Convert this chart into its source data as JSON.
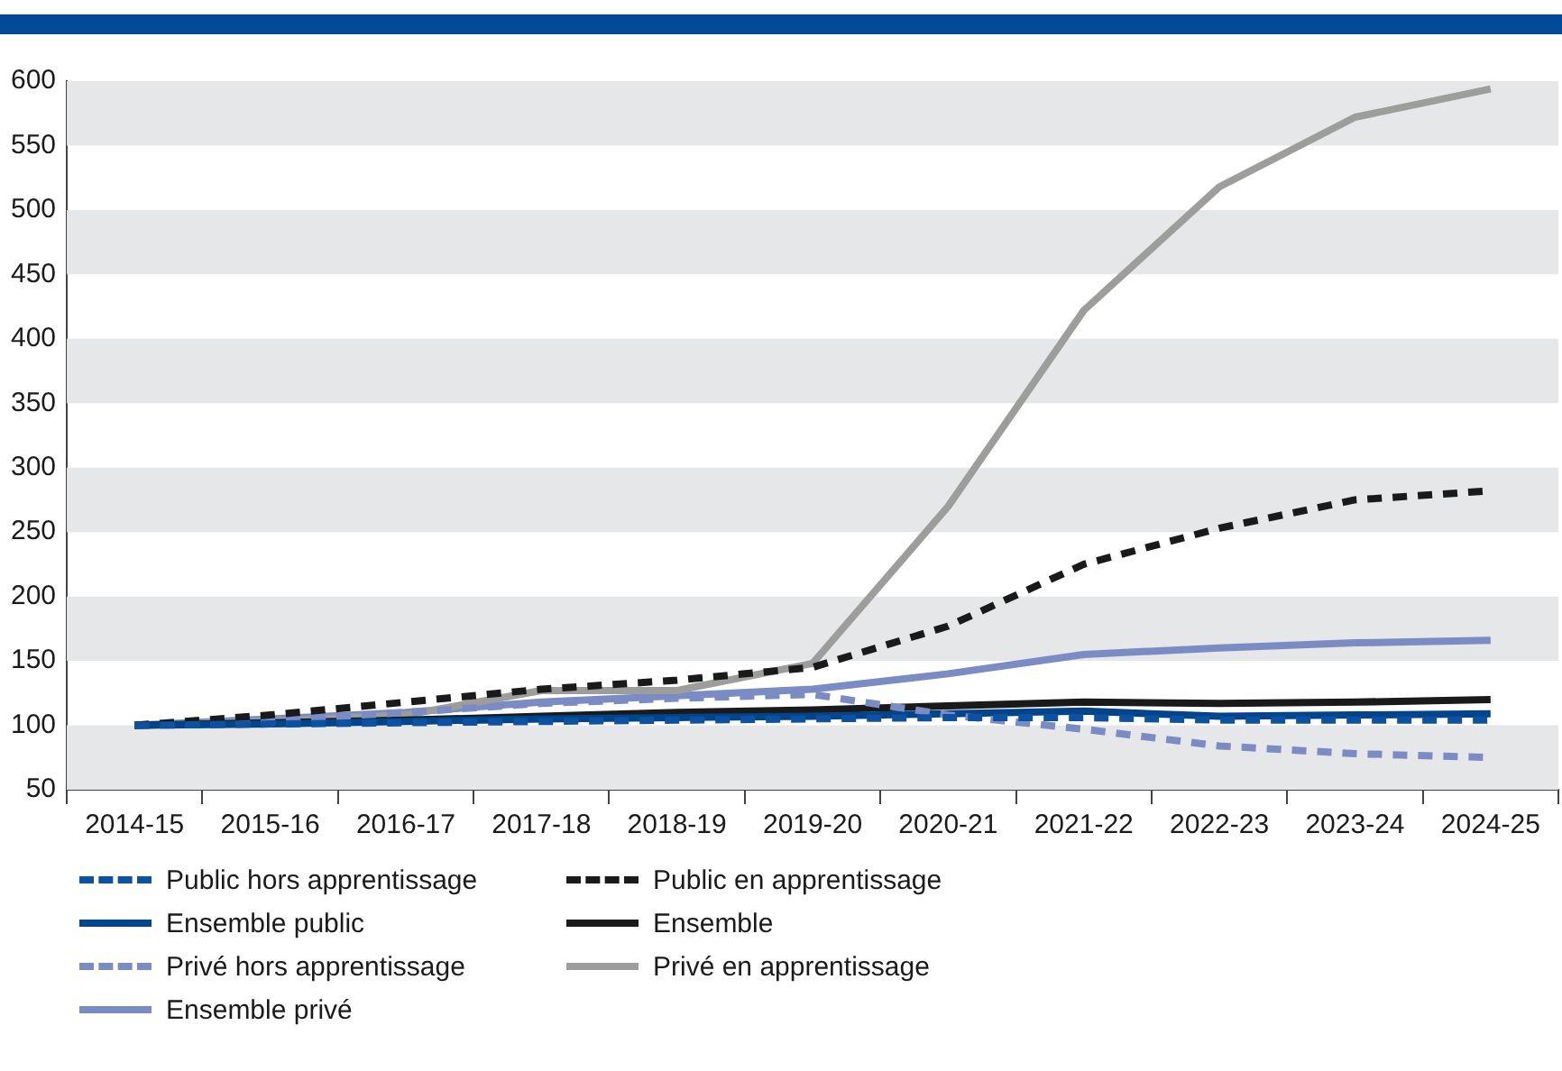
{
  "chart_data": {
    "type": "line",
    "categories": [
      "2014-15",
      "2015-16",
      "2016-17",
      "2017-18",
      "2018-19",
      "2019-20",
      "2020-21",
      "2021-22",
      "2022-23",
      "2023-24",
      "2024-25"
    ],
    "ylim": [
      50,
      600
    ],
    "yticks": [
      50,
      100,
      150,
      200,
      250,
      300,
      350,
      400,
      450,
      500,
      550,
      600
    ],
    "grid": false,
    "legend": "bottom",
    "marker": "none",
    "series": [
      {
        "name": "Public hors apprentissage",
        "color": "#0d52a0",
        "line_style": "dashed",
        "values": [
          100,
          101,
          102,
          103,
          104,
          105,
          106,
          106,
          104,
          104,
          104
        ]
      },
      {
        "name": "Public en apprentissage",
        "color": "#1a1a1a",
        "line_style": "dashed",
        "values": [
          100,
          108,
          118,
          128,
          135,
          145,
          177,
          225,
          253,
          275,
          282
        ]
      },
      {
        "name": "Ensemble public",
        "color": "#00448c",
        "line_style": "solid",
        "values": [
          100,
          101,
          103,
          105,
          106,
          107,
          109,
          111,
          107,
          108,
          109
        ]
      },
      {
        "name": "Ensemble",
        "color": "#1a1a1a",
        "line_style": "solid",
        "values": [
          100,
          102,
          104,
          107,
          110,
          112,
          115,
          118,
          117,
          118,
          120
        ]
      },
      {
        "name": "Privé hors apprentissage",
        "color": "#7b8cc4",
        "line_style": "dashed",
        "values": [
          100,
          104,
          110,
          117,
          121,
          124,
          108,
          97,
          84,
          78,
          75
        ]
      },
      {
        "name": "Privé en apprentissage",
        "color": "#9d9d9c",
        "line_style": "solid",
        "values": [
          100,
          103,
          108,
          127,
          127,
          148,
          270,
          422,
          518,
          572,
          594
        ]
      },
      {
        "name": "Ensemble privé",
        "color": "#7b8cc4",
        "line_style": "solid",
        "values": [
          100,
          105,
          110,
          118,
          123,
          128,
          140,
          155,
          160,
          164,
          166
        ]
      }
    ]
  }
}
